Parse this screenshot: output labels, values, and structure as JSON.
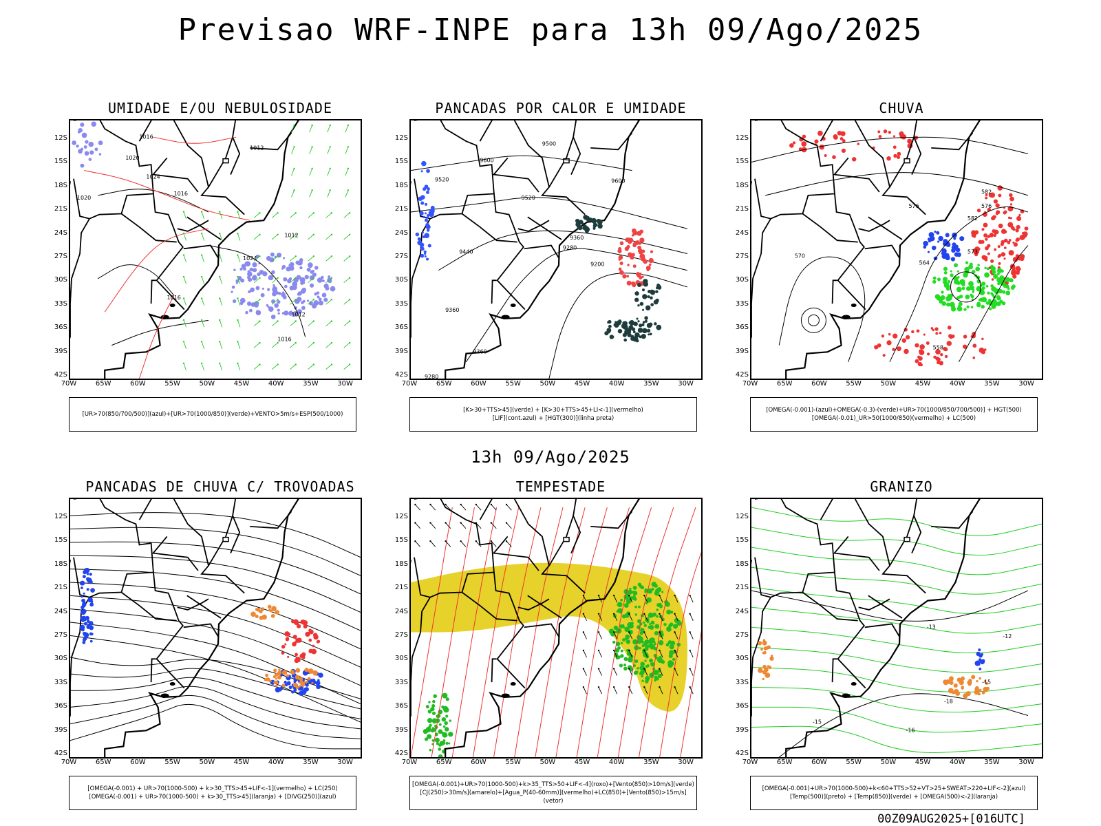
{
  "title": "Previsao WRF-INPE  para 13h 09/Ago/2025",
  "mid_stamp": "13h 09/Ago/2025",
  "footer_stamp": "00Z09AUG2025+[016UTC]",
  "lat_labels": [
    "12S",
    "15S",
    "18S",
    "21S",
    "24S",
    "27S",
    "30S",
    "33S",
    "36S",
    "39S",
    "42S"
  ],
  "lon_labels": [
    "70W",
    "65W",
    "60W",
    "55W",
    "50W",
    "45W",
    "40W",
    "35W",
    "30W"
  ],
  "panels": [
    {
      "title": "UMIDADE E/OU NEBULOSIDADE",
      "legend": [
        "[UR>70(850/700/500)](azul)+[UR>70(1000/850)](verde)+VENTO>5m/s+ESP(500/1000)"
      ],
      "contour_labels": [
        "1016",
        "1012",
        "1020",
        "1024",
        "1016",
        "1020",
        "1012",
        "1024",
        "1016",
        "1012",
        "1016"
      ],
      "colors": {
        "fill_blue": "#8a8aee",
        "contour_green": "#22cc22",
        "contour_red": "#ee3333"
      }
    },
    {
      "title": "PANCADAS POR CALOR E UMIDADE",
      "legend": [
        "[K>30+TTS>45](verde) + [K>30+TTS>45+LI<-1](vermelho)",
        "[LIF](cont.azul) + [HGT(300)](linha preta)"
      ],
      "contour_labels": [
        "9600",
        "9520",
        "9500",
        "9600",
        "9520",
        "9440",
        "9360",
        "9280",
        "9200",
        "9360",
        "9360",
        "9280"
      ],
      "colors": {
        "fill_green": "#1e3c3c",
        "fill_red": "#ee4444",
        "contour_blue": "#3355ff"
      }
    },
    {
      "title": "CHUVA",
      "legend": [
        "[OMEGA(-0.001)-(azul)+OMEGA(-0.3)-(verde)+UR>70(1000/850/700/500)] + HGT(500)",
        "[OMEGA(-0.01)_UR>50(1000/850)(vermelho) + LC(500)"
      ],
      "contour_labels": [
        "582",
        "576",
        "570",
        "576",
        "564",
        "558",
        "573",
        "582"
      ],
      "colors": {
        "fill_red": "#ee3333",
        "fill_green": "#22dd22",
        "fill_blue": "#2244ee"
      }
    },
    {
      "title": "PANCADAS DE CHUVA C/ TROVOADAS",
      "legend": [
        "[OMEGA(-0.001) + UR>70(1000-500) + k>30_TTS>45+LIF<-1](vermelho) + LC(250)",
        "[OMEGA(-0.001) + UR>70(1000-500) + k>30_TTS>45](laranja) + [DIVG(250)](azul)"
      ],
      "contour_labels": [],
      "colors": {
        "fill_blue": "#2244ee",
        "fill_red": "#ee3333",
        "fill_orange": "#ee8833"
      }
    },
    {
      "title": "TEMPESTADE",
      "legend": [
        "[OMEGA(-0.001)+UR>70(1000-500)+k>35_TTS>50+LIF<-4](roxo)+[Vento(850)>10m/s](verde)",
        "[CJ(250)>30m/s](amarelo)+[Agua_P(40-60mm)](vermelho)+LC(850)+[Vento(850)>15m/s](vetor)"
      ],
      "contour_labels": [],
      "colors": {
        "fill_yellow": "#e6d22a",
        "fill_green": "#22bb22",
        "streamline_red": "#ee3333"
      }
    },
    {
      "title": "GRANIZO",
      "legend": [
        "[OMEGA(-0.001)+UR>70(1000-500)+k<60+TTS>52+VT>25+SWEAT>220+LIF<-2](azul)",
        "[Temp(500)](preto) + [Temp(850)](verde) + [OMEGA(500)<-2](laranja)"
      ],
      "contour_labels": [
        "-13",
        "-12",
        "-15",
        "-18",
        "-15",
        "-16"
      ],
      "colors": {
        "contour_green": "#22cc22",
        "fill_orange": "#ee8833",
        "fill_blue": "#2244ee"
      }
    }
  ]
}
